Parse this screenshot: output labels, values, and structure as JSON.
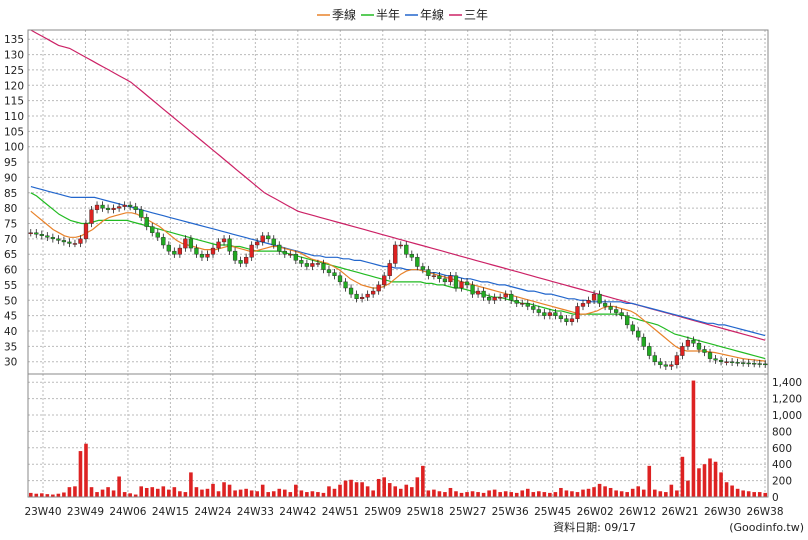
{
  "chart_data": [
    {
      "type": "candlestick",
      "panel": "price",
      "legend": [
        {
          "label": "季線",
          "color": "#e8822a"
        },
        {
          "label": "半年",
          "color": "#22bb22"
        },
        {
          "label": "年線",
          "color": "#2266cc"
        },
        {
          "label": "三年",
          "color": "#cc2266"
        }
      ],
      "legend_position": "top-center",
      "grid": true,
      "y_axis_side": "left",
      "ylim": [
        26,
        138
      ],
      "yticks": [
        30,
        35,
        40,
        45,
        50,
        55,
        60,
        65,
        70,
        75,
        80,
        85,
        90,
        95,
        100,
        105,
        110,
        115,
        120,
        125,
        130,
        135
      ],
      "up_color": "#dd2222",
      "down_color": "#22aa22",
      "close": [
        72,
        71.5,
        71,
        70.5,
        70,
        69.5,
        69,
        68.5,
        68.5,
        70,
        75,
        79.5,
        81,
        80,
        79.5,
        80,
        80.5,
        81,
        80.5,
        79.5,
        77,
        74,
        72,
        70.5,
        68,
        66,
        65,
        67,
        70,
        67,
        65,
        64,
        65,
        67,
        69,
        70,
        66,
        63,
        62,
        64,
        68,
        69,
        71,
        70,
        68,
        66,
        65,
        65,
        63,
        62,
        61,
        62,
        62,
        60,
        59,
        58,
        56,
        54,
        52,
        50.5,
        51,
        52,
        53,
        55,
        58,
        62,
        68,
        68,
        65,
        64,
        61,
        60,
        58,
        58,
        57,
        56,
        58,
        54,
        56,
        55,
        52,
        53,
        51,
        50,
        51,
        51,
        52,
        50,
        49,
        49,
        48,
        47,
        46,
        45,
        46,
        45,
        44,
        43,
        44,
        48,
        49,
        50,
        52,
        49,
        48,
        47,
        46,
        45,
        42,
        40,
        38,
        35,
        32,
        30,
        29,
        28.5,
        29,
        32,
        35,
        37,
        36,
        34,
        33,
        31,
        30.5,
        30,
        30,
        29.8,
        29.7,
        29.6,
        29.5,
        29.4,
        29.3,
        29.2
      ],
      "ma_quarter": [
        79,
        77.5,
        76,
        74.5,
        73,
        72,
        71,
        70.5,
        70.5,
        71,
        72,
        73,
        74.5,
        76,
        77,
        77.5,
        78,
        78.5,
        78.5,
        78,
        77,
        76,
        75,
        74,
        72.5,
        71,
        69.5,
        68.5,
        68,
        67.5,
        67,
        66.5,
        66.5,
        66.5,
        67,
        67.5,
        67.5,
        67,
        66.5,
        66,
        66,
        66.5,
        67,
        67.5,
        67.5,
        67,
        66.5,
        66,
        65.5,
        64.5,
        63.5,
        63,
        62.5,
        62,
        61,
        60,
        58.5,
        57,
        56,
        55,
        54.5,
        54,
        54,
        54.5,
        55.5,
        57,
        58.5,
        59.5,
        60,
        60,
        59.5,
        59,
        58.5,
        58,
        57.5,
        57,
        56.5,
        56,
        55.5,
        55,
        54.5,
        54,
        53.5,
        53,
        52.5,
        52,
        51.5,
        51,
        50.5,
        50,
        49.5,
        49,
        48.5,
        48,
        47.5,
        47,
        46.5,
        46,
        45.5,
        45.5,
        46,
        46.5,
        47.5,
        48,
        48,
        47.5,
        47,
        46.5,
        45.5,
        44,
        42.5,
        41,
        39.5,
        38,
        36.5,
        35,
        34,
        33.5,
        33.5,
        33.5,
        33.5,
        33.2,
        33,
        32.6,
        32.2,
        31.8,
        31.4,
        31,
        30.8,
        30.6,
        30.4,
        30.2
      ],
      "ma_half": [
        85,
        84,
        82.5,
        81,
        79.5,
        78,
        77,
        76,
        75.5,
        75,
        75,
        75.5,
        76,
        76,
        76,
        76,
        76,
        76,
        75.5,
        75,
        74.5,
        74,
        73.5,
        73,
        72.5,
        72,
        71.5,
        71,
        70.5,
        70,
        69.5,
        69,
        68.5,
        68,
        68,
        68,
        67.5,
        67.5,
        67,
        66.5,
        66,
        66,
        66,
        66,
        66,
        65.5,
        65,
        64.5,
        64,
        63.5,
        63,
        62.5,
        62,
        61.5,
        61,
        60.5,
        60,
        59.5,
        59,
        58.5,
        58,
        57.5,
        57,
        56.5,
        56,
        56,
        56,
        56,
        56,
        56,
        55.5,
        55.5,
        55,
        55,
        54.5,
        54,
        54,
        53.5,
        53,
        52.5,
        52,
        51.5,
        51,
        51,
        50.5,
        50,
        49.5,
        49,
        49,
        48.5,
        48,
        47.5,
        47,
        46.5,
        46.5,
        46,
        45.5,
        45.5,
        45.5,
        45.5,
        45.5,
        45.5,
        45.5,
        45.5,
        45.5,
        45,
        44.5,
        44,
        43.5,
        43,
        42.5,
        42,
        41,
        40,
        39,
        38.5,
        38,
        37.5,
        37,
        36.5,
        36,
        35.5,
        35,
        34.5,
        34,
        33.5,
        33,
        32.5,
        32,
        31.5,
        31
      ],
      "ma_year": [
        87,
        86.5,
        86,
        85.5,
        85,
        84.5,
        84,
        83.5,
        83.5,
        83.5,
        83.5,
        83.5,
        83,
        82.5,
        82,
        81.5,
        81,
        80.5,
        80,
        79.5,
        79,
        78.5,
        78,
        77.5,
        77,
        76.5,
        76,
        75.5,
        75,
        74.5,
        74,
        73.5,
        73,
        72.5,
        72,
        71.5,
        71,
        70.5,
        70,
        69.5,
        69,
        68.5,
        68,
        67.5,
        67,
        66.5,
        66,
        65.5,
        65,
        64.5,
        64.5,
        64,
        64,
        64,
        63.5,
        63.5,
        63,
        63,
        62.5,
        62,
        61.5,
        61,
        61,
        60.5,
        60.5,
        60,
        60,
        60,
        59.5,
        59,
        59,
        58.5,
        58,
        58,
        57.5,
        57,
        57,
        56.5,
        56,
        56,
        55.5,
        55,
        55,
        54.5,
        54,
        53.5,
        53,
        53,
        52.5,
        52,
        52,
        51.5,
        51,
        50.5,
        50.5,
        50,
        50,
        49.5,
        49.5,
        49.5,
        49.5,
        49.5,
        49.5,
        49,
        49,
        48.5,
        48,
        47.5,
        47,
        46.5,
        46,
        45.5,
        45,
        44.5,
        44,
        43.5,
        43,
        42.5,
        42.5,
        42,
        42,
        41.5,
        41,
        40.5,
        40,
        39.5,
        39,
        38.5
      ],
      "ma_3year": [
        138,
        137,
        136,
        135,
        134,
        133,
        132.5,
        132,
        131,
        130,
        129,
        128,
        127,
        126,
        125,
        124,
        123,
        122,
        121,
        119.5,
        118,
        116.5,
        115,
        113.5,
        112,
        110.5,
        109,
        107.5,
        106,
        104.5,
        103,
        101.5,
        100,
        98.5,
        97,
        95.5,
        94,
        92.5,
        91,
        89.5,
        88,
        86.5,
        85,
        84,
        83,
        82,
        81,
        80,
        79,
        78.5,
        78,
        77.5,
        77,
        76.5,
        76,
        75.5,
        75,
        74.5,
        74,
        73.5,
        73,
        72.5,
        72,
        71.5,
        71,
        70.5,
        70,
        69.5,
        69,
        68.5,
        68,
        67.5,
        67,
        66.5,
        66,
        65.5,
        65,
        64.5,
        64,
        63.5,
        63,
        62.5,
        62,
        61.5,
        61,
        60.5,
        60,
        59.5,
        59,
        58.5,
        58,
        57.5,
        57,
        56.5,
        56,
        55.5,
        55,
        54.5,
        54,
        53.5,
        53,
        52.5,
        52,
        51.5,
        51,
        50.5,
        50,
        49.5,
        49,
        48.5,
        48,
        47.5,
        47,
        46.5,
        46,
        45.5,
        45,
        44.5,
        44,
        43.5,
        43,
        42.5,
        42,
        41.5,
        41,
        40.5,
        40,
        39.5,
        39,
        38.5,
        38,
        37.5,
        37
      ]
    },
    {
      "type": "bar",
      "panel": "volume",
      "y_axis_side": "right",
      "ylim": [
        0,
        1500
      ],
      "yticks": [
        0,
        200,
        400,
        600,
        800,
        1000,
        1200,
        1400
      ],
      "ytick_labels": [
        "0",
        "200",
        "400",
        "600",
        "800",
        "1,000",
        "1,200",
        "1,400"
      ],
      "bar_color": "#dd2222",
      "x_tick_labels": [
        "23W40",
        "23W49",
        "24W06",
        "24W15",
        "24W24",
        "24W33",
        "24W42",
        "24W51",
        "25W09",
        "25W18",
        "25W27",
        "25W36",
        "25W45",
        "26W02",
        "26W12",
        "26W21",
        "26W30",
        "26W38"
      ],
      "values": [
        50,
        40,
        45,
        35,
        30,
        40,
        55,
        120,
        130,
        560,
        650,
        120,
        60,
        90,
        120,
        80,
        250,
        60,
        45,
        30,
        130,
        110,
        120,
        100,
        130,
        90,
        120,
        70,
        60,
        300,
        120,
        90,
        100,
        160,
        70,
        180,
        150,
        80,
        90,
        100,
        80,
        70,
        150,
        60,
        70,
        100,
        90,
        60,
        150,
        80,
        60,
        70,
        60,
        50,
        130,
        100,
        150,
        200,
        210,
        180,
        180,
        130,
        80,
        220,
        240,
        170,
        130,
        100,
        150,
        120,
        240,
        380,
        80,
        90,
        70,
        60,
        110,
        70,
        50,
        60,
        70,
        60,
        50,
        80,
        90,
        60,
        70,
        60,
        50,
        80,
        100,
        60,
        70,
        60,
        50,
        60,
        110,
        80,
        70,
        60,
        90,
        100,
        120,
        160,
        130,
        110,
        80,
        70,
        60,
        100,
        130,
        90,
        380,
        90,
        70,
        60,
        150,
        80,
        490,
        200,
        1420,
        350,
        400,
        470,
        430,
        300,
        180,
        140,
        100,
        80,
        70,
        60,
        60,
        50
      ]
    }
  ],
  "footer": {
    "date_label": "資料日期: 09/17",
    "source": "(Goodinfo.tw)"
  }
}
